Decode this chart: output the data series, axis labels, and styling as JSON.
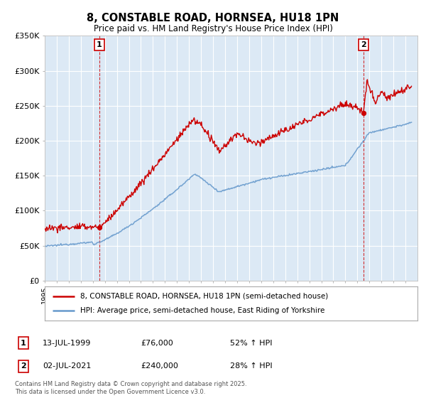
{
  "title_line1": "8, CONSTABLE ROAD, HORNSEA, HU18 1PN",
  "title_line2": "Price paid vs. HM Land Registry's House Price Index (HPI)",
  "background_color": "#ffffff",
  "plot_bg_color": "#dce9f5",
  "grid_color": "#ffffff",
  "red_color": "#cc0000",
  "blue_color": "#6699cc",
  "annotation1": {
    "label": "1",
    "date_str": "13-JUL-1999",
    "price": 76000,
    "hpi_pct": "52% ↑ HPI",
    "x_year": 1999.53
  },
  "annotation2": {
    "label": "2",
    "date_str": "02-JUL-2021",
    "price": 240000,
    "hpi_pct": "28% ↑ HPI",
    "x_year": 2021.5
  },
  "legend_line1": "8, CONSTABLE ROAD, HORNSEA, HU18 1PN (semi-detached house)",
  "legend_line2": "HPI: Average price, semi-detached house, East Riding of Yorkshire",
  "footer": "Contains HM Land Registry data © Crown copyright and database right 2025.\nThis data is licensed under the Open Government Licence v3.0.",
  "xmin": 1995,
  "xmax": 2026,
  "ymin": 0,
  "ymax": 350000,
  "yticks": [
    0,
    50000,
    100000,
    150000,
    200000,
    250000,
    300000,
    350000
  ],
  "ytick_labels": [
    "£0",
    "£50K",
    "£100K",
    "£150K",
    "£200K",
    "£250K",
    "£300K",
    "£350K"
  ]
}
